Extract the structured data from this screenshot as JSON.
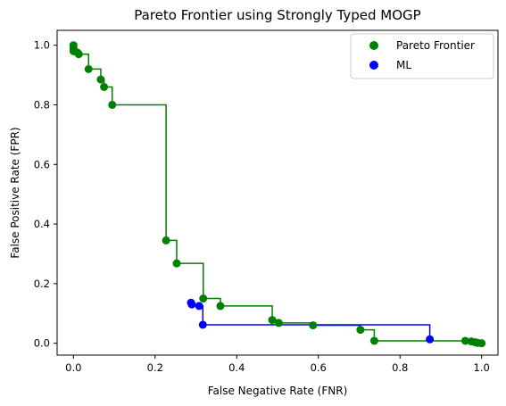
{
  "chart_data": {
    "type": "scatter",
    "title": "Pareto Frontier using Strongly Typed MOGP",
    "xlabel": "False Negative Rate (FNR)",
    "ylabel": "False Positive Rate (FPR)",
    "xlim": [
      -0.04,
      1.04
    ],
    "ylim": [
      -0.04,
      1.05
    ],
    "xticks": [
      0.0,
      0.2,
      0.4,
      0.6,
      0.8,
      1.0
    ],
    "yticks": [
      0.0,
      0.2,
      0.4,
      0.6,
      0.8,
      1.0
    ],
    "xtick_labels": [
      "0.0",
      "0.2",
      "0.4",
      "0.6",
      "0.8",
      "1.0"
    ],
    "ytick_labels": [
      "0.0",
      "0.2",
      "0.4",
      "0.6",
      "0.8",
      "1.0"
    ],
    "grid": false,
    "legend": {
      "placement": "top-right",
      "entries": [
        {
          "label": "Pareto Frontier",
          "color": "#008000"
        },
        {
          "label": "ML",
          "color": "#0000ff"
        }
      ]
    },
    "series": [
      {
        "name": "Pareto Frontier",
        "color": "#008000",
        "step_line": true,
        "points": [
          [
            0.0,
            1.0
          ],
          [
            0.0,
            0.99
          ],
          [
            0.0,
            0.98
          ],
          [
            0.01,
            0.975
          ],
          [
            0.013,
            0.97
          ],
          [
            0.037,
            0.92
          ],
          [
            0.067,
            0.885
          ],
          [
            0.075,
            0.86
          ],
          [
            0.095,
            0.8
          ],
          [
            0.227,
            0.345
          ],
          [
            0.253,
            0.268
          ],
          [
            0.318,
            0.15
          ],
          [
            0.36,
            0.125
          ],
          [
            0.487,
            0.078
          ],
          [
            0.503,
            0.068
          ],
          [
            0.587,
            0.06
          ],
          [
            0.703,
            0.045
          ],
          [
            0.737,
            0.008
          ],
          [
            0.96,
            0.008
          ],
          [
            0.975,
            0.006
          ],
          [
            0.985,
            0.003
          ],
          [
            0.99,
            0.001
          ],
          [
            1.0,
            0.0
          ]
        ]
      },
      {
        "name": "ML",
        "color": "#0000ff",
        "step_line": true,
        "points": [
          [
            0.288,
            0.136
          ],
          [
            0.29,
            0.13
          ],
          [
            0.308,
            0.125
          ],
          [
            0.317,
            0.062
          ],
          [
            0.873,
            0.013
          ]
        ]
      }
    ]
  }
}
